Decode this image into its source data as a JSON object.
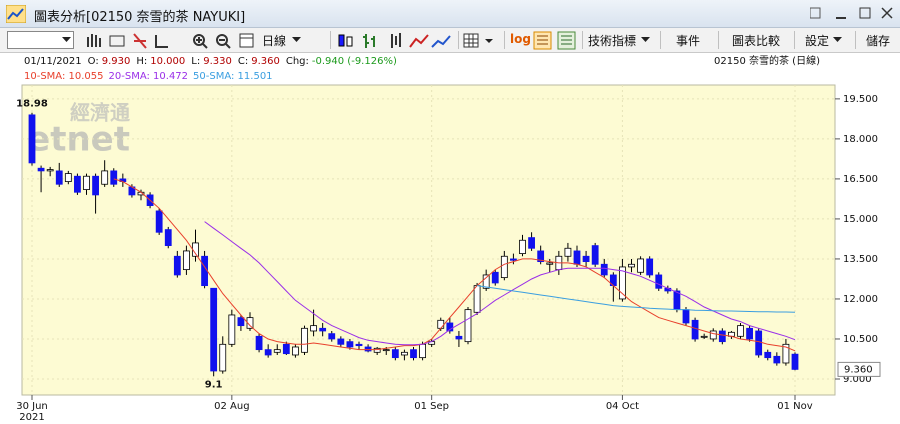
{
  "window": {
    "title": "圖表分析[02150 奈雪的茶 NAYUKI]"
  },
  "toolbar": {
    "period": "日線",
    "log": "log",
    "indicators": "技術指標",
    "events": "事件",
    "compare": "圖表比較",
    "settings": "設定",
    "save": "儲存"
  },
  "chart_data": {
    "type": "candlestick",
    "header": "02150  奈雪的茶 (日線)",
    "watermark": [
      "經濟通",
      "etnet"
    ],
    "info": {
      "date": "01/11/2021",
      "fields": [
        {
          "label": "O:",
          "value": "9.930"
        },
        {
          "label": "H:",
          "value": "10.000"
        },
        {
          "label": "L:",
          "value": "9.330"
        },
        {
          "label": "C:",
          "value": "9.360"
        },
        {
          "label": "Chg:",
          "value": "-0.940 (-9.126%)"
        }
      ]
    },
    "categories": [
      "30 Jun",
      null,
      null,
      null,
      null,
      null,
      null,
      null,
      null,
      null,
      null,
      null,
      null,
      null,
      null,
      null,
      null,
      null,
      null,
      null,
      null,
      null,
      "02 Aug",
      null,
      null,
      null,
      null,
      null,
      null,
      null,
      null,
      null,
      null,
      null,
      null,
      null,
      null,
      null,
      null,
      null,
      null,
      null,
      null,
      null,
      "01 Sep",
      null,
      null,
      null,
      null,
      null,
      null,
      null,
      null,
      null,
      null,
      null,
      null,
      null,
      null,
      null,
      null,
      null,
      null,
      null,
      null,
      "04 Oct",
      null,
      null,
      null,
      null,
      null,
      null,
      null,
      null,
      null,
      null,
      null,
      null,
      null,
      null,
      null,
      null,
      null,
      null,
      "01 Nov"
    ],
    "x_year_label": "2021",
    "open": [
      18.9,
      16.9,
      16.8,
      16.8,
      16.4,
      16.6,
      16.1,
      16.6,
      16.3,
      16.8,
      16.5,
      16.2,
      15.9,
      15.9,
      15.3,
      14.6,
      13.6,
      13.1,
      13.6,
      13.6,
      12.4,
      9.3,
      10.3,
      11.3,
      10.9,
      10.6,
      10.1,
      10.0,
      10.3,
      9.9,
      10.0,
      10.8,
      10.9,
      10.7,
      10.5,
      10.4,
      10.3,
      10.2,
      10.0,
      10.1,
      10.1,
      9.9,
      10.1,
      9.8,
      10.3,
      10.9,
      11.1,
      10.6,
      10.4,
      11.5,
      12.4,
      13.0,
      12.8,
      13.5,
      13.7,
      14.3,
      13.8,
      13.3,
      13.1,
      13.6,
      13.8,
      13.6,
      14.0,
      13.3,
      12.9,
      12.0,
      13.2,
      13.0,
      13.5,
      12.9,
      12.4,
      12.3,
      11.6,
      11.2,
      10.6,
      10.5,
      10.8,
      10.6,
      10.6,
      10.9,
      10.8,
      10.0,
      9.85,
      9.6,
      9.93
    ],
    "high": [
      18.98,
      17.0,
      16.95,
      17.1,
      16.8,
      16.7,
      16.7,
      16.7,
      17.2,
      16.9,
      16.7,
      16.3,
      16.1,
      16.0,
      15.4,
      14.7,
      13.8,
      14.0,
      14.6,
      13.8,
      12.4,
      10.6,
      11.6,
      11.4,
      11.5,
      10.7,
      10.3,
      10.3,
      10.4,
      10.3,
      11.0,
      11.6,
      11.1,
      10.8,
      10.6,
      10.5,
      10.4,
      10.3,
      10.2,
      10.2,
      10.2,
      10.1,
      10.2,
      10.4,
      10.5,
      11.3,
      11.3,
      10.8,
      11.7,
      12.6,
      13.1,
      13.1,
      13.8,
      13.7,
      14.4,
      14.5,
      14.0,
      13.5,
      13.8,
      14.1,
      14.0,
      13.8,
      14.1,
      13.5,
      13.0,
      13.5,
      13.5,
      13.6,
      13.6,
      13.0,
      12.5,
      12.4,
      11.7,
      11.3,
      10.7,
      10.9,
      10.9,
      10.8,
      11.1,
      11.0,
      10.9,
      10.1,
      10.0,
      10.5,
      10.0
    ],
    "low": [
      17.0,
      16.0,
      16.6,
      16.2,
      16.3,
      15.9,
      15.9,
      15.2,
      16.2,
      16.2,
      16.2,
      15.8,
      15.7,
      15.4,
      14.4,
      13.9,
      12.8,
      12.9,
      13.4,
      12.4,
      9.1,
      9.2,
      10.2,
      10.8,
      10.8,
      10.0,
      9.8,
      9.9,
      9.9,
      9.8,
      9.9,
      10.6,
      10.6,
      10.4,
      10.2,
      10.1,
      10.1,
      10.0,
      9.9,
      9.9,
      9.7,
      9.7,
      9.7,
      9.7,
      10.2,
      10.8,
      10.7,
      10.2,
      10.3,
      11.4,
      12.3,
      12.5,
      12.7,
      13.3,
      13.6,
      13.8,
      13.3,
      13.0,
      12.9,
      13.4,
      13.2,
      13.2,
      13.2,
      12.8,
      11.9,
      11.9,
      13.0,
      12.9,
      12.8,
      12.3,
      12.2,
      11.5,
      11.0,
      10.4,
      10.5,
      10.4,
      10.3,
      10.5,
      10.5,
      10.4,
      9.8,
      9.7,
      9.5,
      9.5,
      9.33
    ],
    "close": [
      17.1,
      16.8,
      16.85,
      16.3,
      16.7,
      16.0,
      16.6,
      15.9,
      16.8,
      16.3,
      16.4,
      15.9,
      16.0,
      15.5,
      14.5,
      14.0,
      12.9,
      13.8,
      14.1,
      12.5,
      9.3,
      10.3,
      11.4,
      11.0,
      11.3,
      10.1,
      9.9,
      10.1,
      9.95,
      10.2,
      10.9,
      11.0,
      10.8,
      10.5,
      10.3,
      10.2,
      10.25,
      10.05,
      10.15,
      10.1,
      9.8,
      10.0,
      9.8,
      10.3,
      10.4,
      11.2,
      10.8,
      10.5,
      11.6,
      12.5,
      12.9,
      12.6,
      13.6,
      13.45,
      14.2,
      13.9,
      13.4,
      13.35,
      13.6,
      13.9,
      13.3,
      13.4,
      13.3,
      12.9,
      12.5,
      13.2,
      13.3,
      13.5,
      12.9,
      12.4,
      12.3,
      11.6,
      11.1,
      10.5,
      10.6,
      10.8,
      10.4,
      10.75,
      11.0,
      10.5,
      9.9,
      9.8,
      9.6,
      10.3,
      9.36
    ],
    "last_label": "9.360",
    "up_color": "#ffffff",
    "down_color": "#1111ee",
    "wick_color": "#000000",
    "sma": [
      {
        "name": "10-SMA: 10.055",
        "color": "#e8402c",
        "values": [
          null,
          null,
          null,
          null,
          null,
          null,
          null,
          null,
          null,
          16.5,
          16.4,
          16.2,
          16.0,
          15.7,
          15.4,
          15.0,
          14.6,
          14.2,
          13.7,
          13.2,
          12.7,
          12.2,
          11.8,
          11.4,
          11.0,
          10.7,
          10.5,
          10.4,
          10.35,
          10.3,
          10.3,
          10.35,
          10.3,
          10.25,
          10.2,
          10.15,
          10.1,
          10.1,
          10.1,
          10.15,
          10.2,
          10.25,
          10.25,
          10.3,
          10.5,
          10.9,
          11.3,
          11.7,
          12.1,
          12.5,
          12.8,
          13.1,
          13.3,
          13.4,
          13.5,
          13.5,
          13.45,
          13.4,
          13.35,
          13.35,
          13.3,
          13.2,
          13.0,
          12.8,
          12.5,
          12.2,
          11.9,
          11.7,
          11.5,
          11.3,
          11.2,
          11.1,
          11.0,
          10.9,
          10.8,
          10.7,
          10.65,
          10.6,
          10.5,
          10.45,
          10.4,
          10.3,
          10.25,
          10.2,
          10.055
        ]
      },
      {
        "name": "20-SMA: 10.472",
        "color": "#9a2ee8",
        "values": [
          null,
          null,
          null,
          null,
          null,
          null,
          null,
          null,
          null,
          null,
          null,
          null,
          null,
          null,
          null,
          null,
          null,
          null,
          null,
          14.9,
          14.65,
          14.4,
          14.15,
          13.9,
          13.65,
          13.35,
          13.0,
          12.65,
          12.3,
          11.95,
          11.7,
          11.45,
          11.2,
          11.0,
          10.85,
          10.7,
          10.55,
          10.45,
          10.4,
          10.35,
          10.3,
          10.28,
          10.28,
          10.3,
          10.4,
          10.6,
          10.85,
          11.05,
          11.25,
          11.45,
          11.7,
          11.95,
          12.15,
          12.35,
          12.55,
          12.75,
          12.9,
          13.0,
          13.1,
          13.15,
          13.15,
          13.15,
          13.15,
          13.15,
          13.1,
          13.05,
          12.95,
          12.85,
          12.7,
          12.55,
          12.4,
          12.25,
          12.1,
          11.9,
          11.7,
          11.55,
          11.4,
          11.25,
          11.15,
          11.0,
          10.9,
          10.8,
          10.7,
          10.6,
          10.472
        ]
      },
      {
        "name": "50-SMA: 11.501",
        "color": "#3a9ee0",
        "values": [
          null,
          null,
          null,
          null,
          null,
          null,
          null,
          null,
          null,
          null,
          null,
          null,
          null,
          null,
          null,
          null,
          null,
          null,
          null,
          null,
          null,
          null,
          null,
          null,
          null,
          null,
          null,
          null,
          null,
          null,
          null,
          null,
          null,
          null,
          null,
          null,
          null,
          null,
          null,
          null,
          null,
          null,
          null,
          null,
          null,
          null,
          null,
          null,
          null,
          12.5,
          12.45,
          12.4,
          12.35,
          12.3,
          12.25,
          12.2,
          12.15,
          12.1,
          12.05,
          12.0,
          11.95,
          11.9,
          11.85,
          11.8,
          11.75,
          11.72,
          11.7,
          11.68,
          11.65,
          11.63,
          11.62,
          11.6,
          11.6,
          11.58,
          11.57,
          11.56,
          11.55,
          11.55,
          11.54,
          11.53,
          11.52,
          11.52,
          11.51,
          11.51,
          11.501
        ]
      }
    ],
    "ylim": [
      8.4,
      20.02
    ],
    "yticks": [
      {
        "value": 9,
        "label": "9.000"
      },
      {
        "value": 10.5,
        "label": "10.500"
      },
      {
        "value": 12,
        "label": "12.000"
      },
      {
        "value": 13.5,
        "label": "13.500"
      },
      {
        "value": 15,
        "label": "15.000"
      },
      {
        "value": 16.5,
        "label": "16.500"
      },
      {
        "value": 18,
        "label": "18.000"
      },
      {
        "value": 19.5,
        "label": "19.500"
      }
    ],
    "grid": true
  }
}
